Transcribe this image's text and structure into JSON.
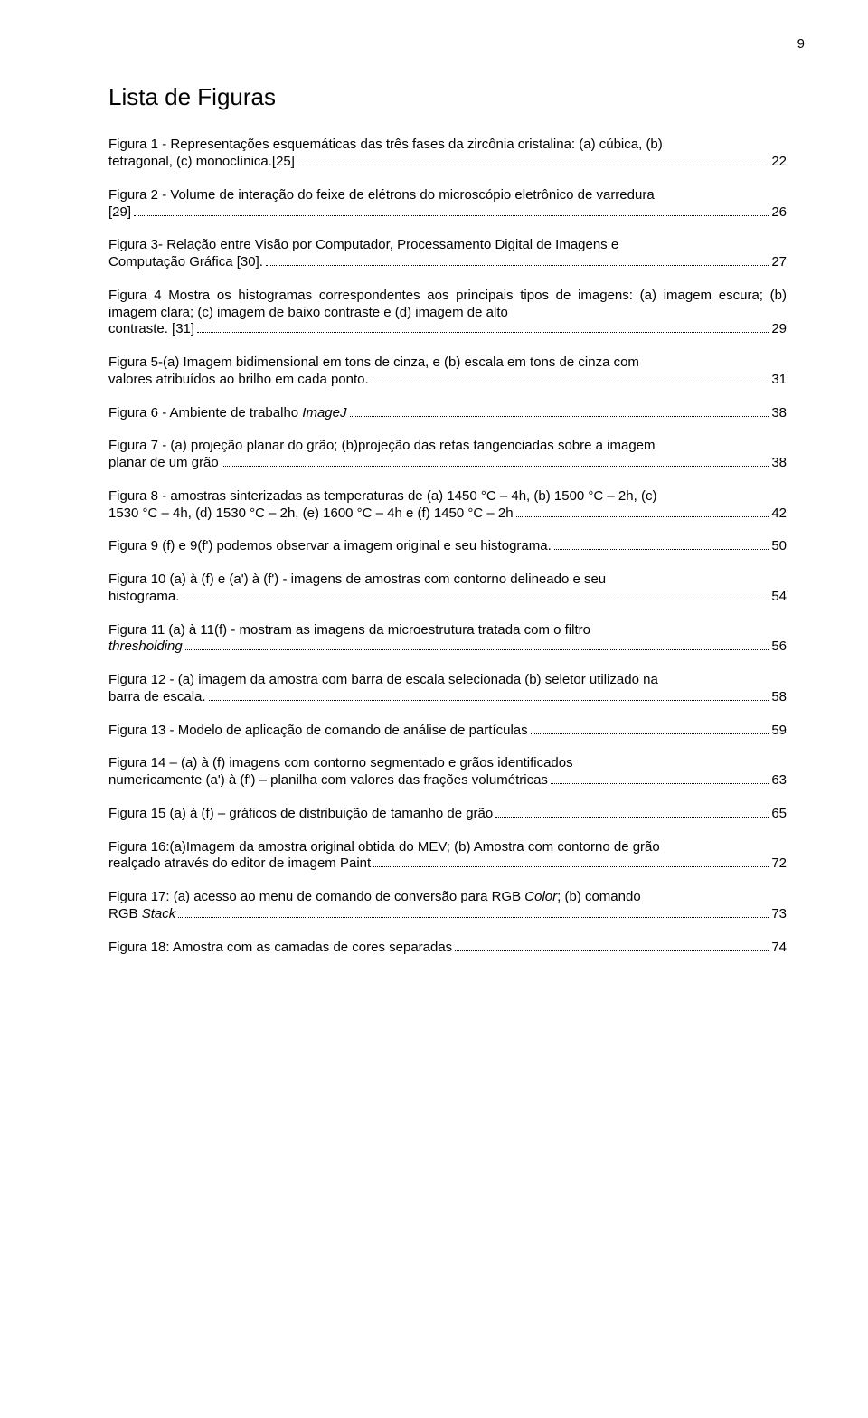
{
  "page_number": "9",
  "title": "Lista de Figuras",
  "entries": [
    {
      "pre": "Figura 1 - Representações esquemáticas das três fases da zircônia cristalina: (a) cúbica, (b)",
      "last": "tetragonal, (c) monoclínica.[25]",
      "page": "22"
    },
    {
      "pre": "Figura 2 - Volume de interação do feixe de elétrons do microscópio eletrônico de varredura",
      "last": "[29]",
      "page": "26"
    },
    {
      "pre": "Figura 3- Relação entre Visão por Computador, Processamento Digital de Imagens e",
      "last": "Computação Gráfica [30].",
      "page": "27"
    },
    {
      "pre": "Figura 4 Mostra os histogramas correspondentes aos principais tipos de imagens: (a) imagem escura; (b) imagem clara; (c) imagem de baixo contraste e (d) imagem de alto",
      "last": "contraste. [31]",
      "page": "29"
    },
    {
      "pre": "Figura 5-(a) Imagem bidimensional em tons de cinza, e (b) escala em tons de cinza com",
      "last": "valores atribuídos ao brilho em cada ponto.",
      "page": "31"
    },
    {
      "pre": "",
      "last": "Figura 6 - Ambiente de trabalho <span class=\"italic\">ImageJ</span>",
      "page": "38"
    },
    {
      "pre": "Figura 7 - (a) projeção planar do grão; (b)projeção das retas tangenciadas sobre a imagem",
      "last": "planar de um grão",
      "page": "38"
    },
    {
      "pre": "Figura 8 -  amostras sinterizadas as temperaturas de (a) 1450 °C – 4h, (b) 1500 °C – 2h, (c)",
      "last": "1530 °C – 4h, (d) 1530 °C – 2h, (e) 1600 °C – 4h e (f) 1450 °C – 2h",
      "page": "42"
    },
    {
      "pre": "",
      "last": "Figura 9 (f) e 9(f') podemos observar a imagem original e seu histograma.",
      "page": "50"
    },
    {
      "pre": "Figura 10 (a) à (f) e (a') à (f') - imagens de amostras com contorno delineado e seu",
      "last": "histograma.",
      "page": "54"
    },
    {
      "pre": "Figura 11 (a) à 11(f) - mostram as imagens da microestrutura tratada com o filtro",
      "last": "<span class=\"italic\">thresholding</span>",
      "page": "56"
    },
    {
      "pre": "Figura 12 - (a) imagem da amostra com barra de escala selecionada (b) seletor utilizado na",
      "last": "barra de escala.",
      "page": "58"
    },
    {
      "pre": "",
      "last": "Figura 13  - Modelo de aplicação de comando de análise de partículas",
      "page": "59"
    },
    {
      "pre": "Figura 14 – (a) à (f) imagens com contorno segmentado e grãos identificados",
      "last": "numericamente (a') à (f') – planilha com valores das frações volumétricas",
      "page": "63"
    },
    {
      "pre": "",
      "last": "Figura 15 (a) à (f) – gráficos de distribuição de tamanho de grão",
      "page": "65"
    },
    {
      "pre": "Figura 16:(a)Imagem da amostra original obtida do MEV; (b) Amostra com contorno de grão",
      "last": "realçado através do editor de imagem Paint",
      "page": "72"
    },
    {
      "pre": "Figura 17: (a) acesso ao menu de comando de conversão para RGB <span class=\"italic\">Color</span>; (b) comando",
      "last": "RGB <span class=\"italic\">Stack</span>",
      "page": "73"
    },
    {
      "pre": "",
      "last": "Figura 18: Amostra com as camadas de cores separadas",
      "page": "74"
    }
  ]
}
